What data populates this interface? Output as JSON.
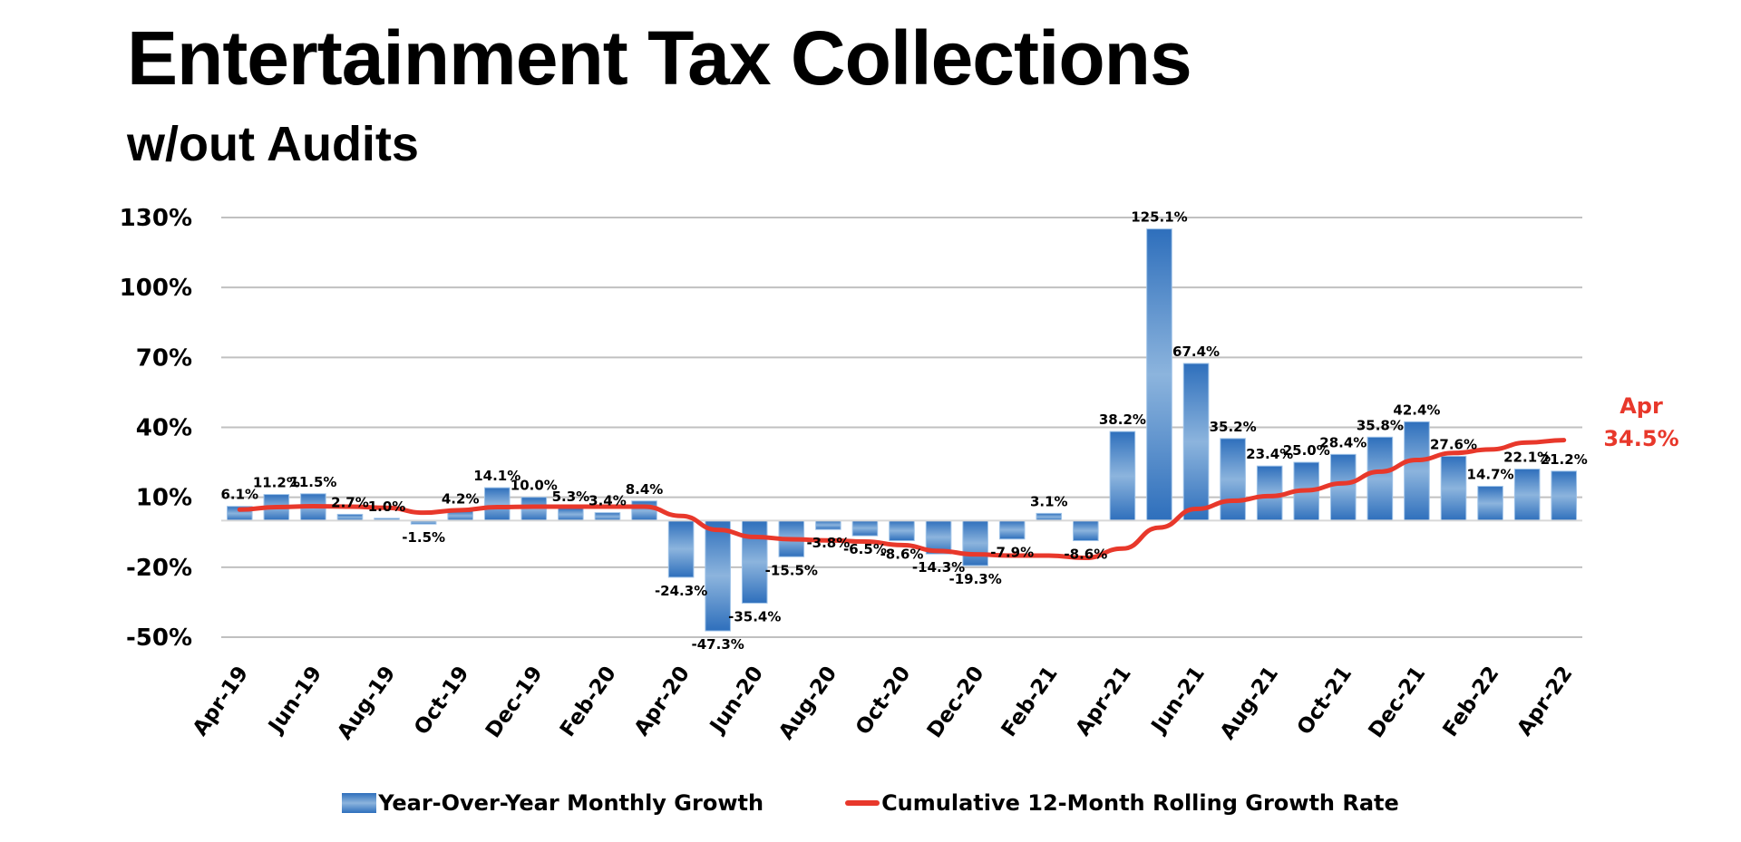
{
  "header": {
    "title": "Entertainment Tax Collections",
    "subtitle": "w/out Audits"
  },
  "chart_data": {
    "type": "bar",
    "title": "Entertainment Tax Collections",
    "subtitle": "w/out Audits",
    "xlabel": "",
    "ylabel": "",
    "ylim": [
      -50,
      130
    ],
    "yticks": [
      130,
      100,
      70,
      40,
      10,
      -20,
      -50
    ],
    "ytick_labels": [
      "130%",
      "100%",
      "70%",
      "40%",
      "10%",
      "-20%",
      "-50%"
    ],
    "grid": true,
    "legend_position": "bottom",
    "categories": [
      "Apr-19",
      "May-19",
      "Jun-19",
      "Jul-19",
      "Aug-19",
      "Sep-19",
      "Oct-19",
      "Nov-19",
      "Dec-19",
      "Jan-20",
      "Feb-20",
      "Mar-20",
      "Apr-20",
      "May-20",
      "Jun-20",
      "Jul-20",
      "Aug-20",
      "Sep-20",
      "Oct-20",
      "Nov-20",
      "Dec-20",
      "Jan-21",
      "Feb-21",
      "Mar-21",
      "Apr-21",
      "May-21",
      "Jun-21",
      "Jul-21",
      "Aug-21",
      "Sep-21",
      "Oct-21",
      "Nov-21",
      "Dec-21",
      "Jan-22",
      "Feb-22",
      "Mar-22",
      "Apr-22"
    ],
    "xtick_labels": [
      "Apr-19",
      "Jun-19",
      "Aug-19",
      "Oct-19",
      "Dec-19",
      "Feb-20",
      "Apr-20",
      "Jun-20",
      "Aug-20",
      "Oct-20",
      "Dec-20",
      "Feb-21",
      "Apr-21",
      "Jun-21",
      "Aug-21",
      "Oct-21",
      "Dec-21",
      "Feb-22",
      "Apr-22"
    ],
    "series": [
      {
        "name": "Year-Over-Year Monthly Growth",
        "type": "bar",
        "color": "#2e6fbc",
        "values": [
          6.1,
          11.2,
          11.5,
          2.7,
          1.0,
          -1.5,
          4.2,
          14.1,
          10.0,
          5.3,
          3.4,
          8.4,
          -24.3,
          -47.3,
          -35.4,
          -15.5,
          -3.8,
          -6.5,
          -8.6,
          -14.3,
          -19.3,
          -7.9,
          3.1,
          -8.6,
          38.2,
          125.1,
          67.4,
          35.2,
          23.4,
          25.0,
          28.4,
          35.8,
          42.4,
          27.6,
          14.7,
          22.1,
          21.2
        ],
        "labels": [
          "6.1%",
          "11.2%",
          "11.5%",
          "2.7%",
          "1.0%",
          "-1.5%",
          "4.2%",
          "14.1%",
          "10.0%",
          "5.3%",
          "3.4%",
          "8.4%",
          "-24.3%",
          "-47.3%",
          "-35.4%",
          "-15.5%",
          "-3.8%",
          "-6.5%",
          "-8.6%",
          "-14.3%",
          "-19.3%",
          "-7.9%",
          "3.1%",
          "-8.6%",
          "38.2%",
          "125.1%",
          "67.4%",
          "35.2%",
          "23.4%",
          "25.0%",
          "28.4%",
          "35.8%",
          "42.4%",
          "27.6%",
          "14.7%",
          "22.1%",
          "21.2%"
        ]
      },
      {
        "name": "Cumulative 12-Month Rolling Growth Rate",
        "type": "line",
        "color": "#e8382b",
        "values": [
          4.7,
          5.8,
          6.2,
          6.0,
          5.5,
          3.4,
          4.5,
          5.8,
          6.0,
          6.0,
          6.0,
          6.0,
          2.0,
          -4.0,
          -7.0,
          -8.0,
          -8.5,
          -9.0,
          -10.5,
          -13.0,
          -14.5,
          -15.0,
          -15.0,
          -16.0,
          -12.0,
          -3.0,
          5.0,
          8.5,
          10.5,
          13.0,
          16.0,
          21.0,
          26.0,
          29.0,
          30.5,
          33.5,
          34.5
        ]
      }
    ],
    "annotation": {
      "line1": "Apr",
      "line2": "34.5%",
      "color": "#e8382b"
    }
  },
  "legend": {
    "items": [
      {
        "label": "Year-Over-Year Monthly Growth",
        "icon": "bar-swatch-icon"
      },
      {
        "label": "Cumulative 12-Month Rolling Growth Rate",
        "icon": "line-swatch-icon"
      }
    ]
  }
}
